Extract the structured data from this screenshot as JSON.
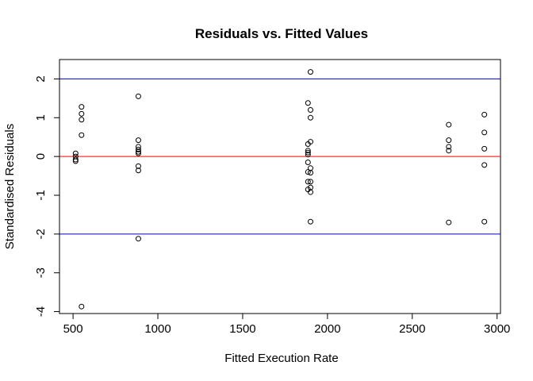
{
  "chart_data": {
    "type": "scatter",
    "title": "Residuals vs. Fitted Values",
    "xlabel": "Fitted Execution Rate",
    "ylabel": "Standardised Residuals",
    "xlim": [
      420,
      3020
    ],
    "ylim": [
      -4.05,
      2.5
    ],
    "xticks": [
      500,
      1000,
      1500,
      2000,
      2500,
      3000
    ],
    "yticks": [
      -4,
      -3,
      -2,
      -1,
      0,
      1,
      2
    ],
    "grid": false,
    "reference_lines": [
      {
        "y": 2,
        "color": "#0000cc"
      },
      {
        "y": 0,
        "color": "#ff0000"
      },
      {
        "y": -2,
        "color": "#0000cc"
      }
    ],
    "points": [
      {
        "x": 515,
        "y": 0.08
      },
      {
        "x": 515,
        "y": 0.0
      },
      {
        "x": 515,
        "y": -0.08
      },
      {
        "x": 515,
        "y": -0.12
      },
      {
        "x": 550,
        "y": 1.28
      },
      {
        "x": 550,
        "y": 1.1
      },
      {
        "x": 550,
        "y": 0.95
      },
      {
        "x": 550,
        "y": 0.55
      },
      {
        "x": 550,
        "y": -3.87
      },
      {
        "x": 885,
        "y": 1.55
      },
      {
        "x": 885,
        "y": 0.42
      },
      {
        "x": 885,
        "y": 0.25
      },
      {
        "x": 885,
        "y": 0.18
      },
      {
        "x": 885,
        "y": 0.12
      },
      {
        "x": 885,
        "y": 0.08
      },
      {
        "x": 885,
        "y": -0.25
      },
      {
        "x": 885,
        "y": -0.36
      },
      {
        "x": 885,
        "y": -2.12
      },
      {
        "x": 1885,
        "y": 1.38
      },
      {
        "x": 1885,
        "y": 0.32
      },
      {
        "x": 1885,
        "y": 0.15
      },
      {
        "x": 1885,
        "y": 0.1
      },
      {
        "x": 1885,
        "y": 0.05
      },
      {
        "x": 1885,
        "y": -0.15
      },
      {
        "x": 1885,
        "y": -0.4
      },
      {
        "x": 1885,
        "y": -0.65
      },
      {
        "x": 1885,
        "y": -0.85
      },
      {
        "x": 1900,
        "y": 2.18
      },
      {
        "x": 1900,
        "y": 1.2
      },
      {
        "x": 1900,
        "y": 1.0
      },
      {
        "x": 1900,
        "y": 0.38
      },
      {
        "x": 1900,
        "y": -0.3
      },
      {
        "x": 1900,
        "y": -0.42
      },
      {
        "x": 1900,
        "y": -0.65
      },
      {
        "x": 1900,
        "y": -0.8
      },
      {
        "x": 1900,
        "y": -0.92
      },
      {
        "x": 1900,
        "y": -1.68
      },
      {
        "x": 2715,
        "y": 0.82
      },
      {
        "x": 2715,
        "y": 0.42
      },
      {
        "x": 2715,
        "y": 0.25
      },
      {
        "x": 2715,
        "y": 0.15
      },
      {
        "x": 2715,
        "y": -1.7
      },
      {
        "x": 2925,
        "y": 1.08
      },
      {
        "x": 2925,
        "y": 0.62
      },
      {
        "x": 2925,
        "y": 0.2
      },
      {
        "x": 2925,
        "y": -0.22
      },
      {
        "x": 2925,
        "y": -1.68
      }
    ]
  }
}
